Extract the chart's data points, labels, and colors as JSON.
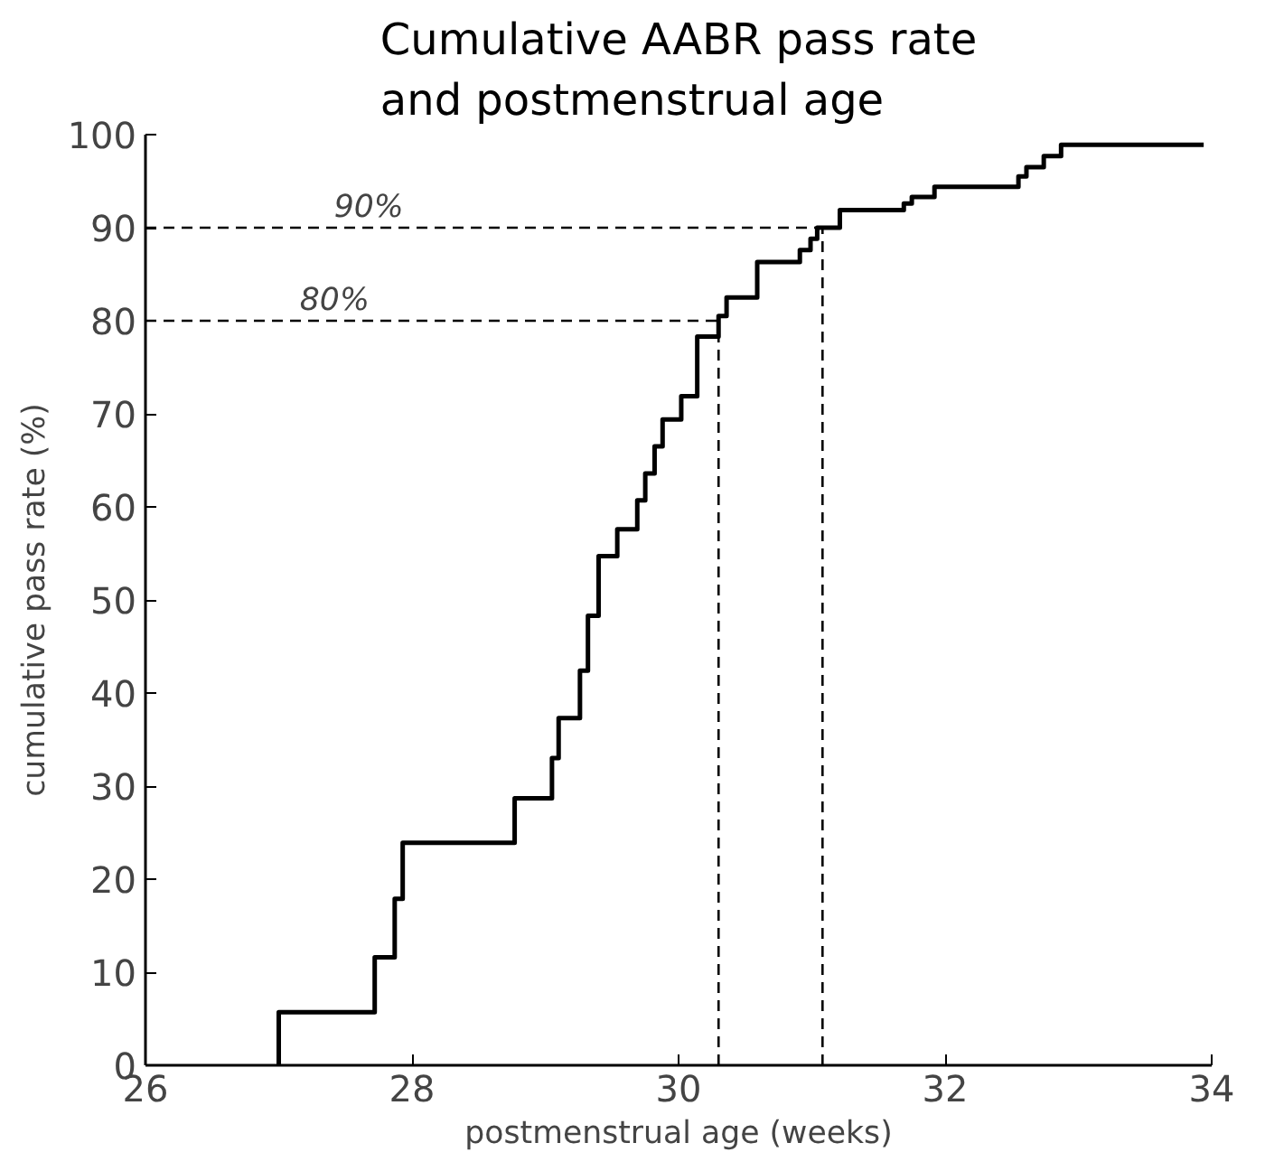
{
  "chart_data": {
    "type": "step",
    "title": "Cumulative AABR pass rate\nand postmenstrual age",
    "xlabel": "postmenstrual age (weeks)",
    "ylabel": "cumulative pass rate (%)",
    "xlim": [
      26,
      34
    ],
    "ylim": [
      0,
      100
    ],
    "xticks": [
      26,
      28,
      30,
      32,
      34
    ],
    "yticks": [
      0,
      10,
      20,
      30,
      40,
      50,
      60,
      70,
      80,
      90,
      100
    ],
    "grid": false,
    "line_style": "solid",
    "series": [
      {
        "color": "#000000",
        "x": [
          27.0,
          27.0,
          27.72,
          27.87,
          27.93,
          28.77,
          29.05,
          29.1,
          29.18,
          29.26,
          29.32,
          29.4,
          29.54,
          29.69,
          29.75,
          29.82,
          29.88,
          30.02,
          30.14,
          30.3,
          30.36,
          30.59,
          30.91,
          30.99,
          31.04,
          31.21,
          31.69,
          31.75,
          31.92,
          32.55,
          32.61,
          32.74,
          32.87,
          33.94
        ],
        "values": [
          0,
          5.7,
          11.6,
          17.9,
          23.9,
          28.7,
          33.0,
          37.3,
          37.3,
          42.4,
          48.3,
          54.7,
          57.6,
          60.7,
          63.6,
          66.5,
          69.4,
          71.9,
          78.3,
          80.5,
          82.5,
          86.3,
          87.6,
          88.8,
          90.0,
          91.9,
          92.6,
          93.3,
          94.4,
          95.5,
          96.5,
          97.7,
          98.9,
          98.9
        ]
      }
    ],
    "ref_lines": [
      {
        "axis": "y",
        "value": 80,
        "label": "80%",
        "line_style": "dashed",
        "color": "#000000"
      },
      {
        "axis": "y",
        "value": 90,
        "label": "90%",
        "line_style": "dashed",
        "color": "#000000"
      },
      {
        "axis": "x",
        "value": 30.3,
        "line_style": "dashed",
        "color": "#000000"
      },
      {
        "axis": "x",
        "value": 31.08,
        "line_style": "dashed",
        "color": "#000000"
      }
    ]
  }
}
